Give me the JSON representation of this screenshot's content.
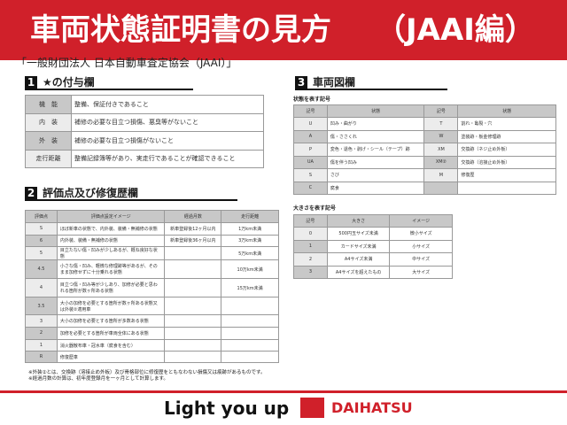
{
  "header": {
    "title": "車両状態証明書の見方",
    "subtitle": "（JAAI編）"
  },
  "organization": "「一般財団法人 日本自動車査定協会（JAAI）」",
  "section1": {
    "num": "1",
    "title": "★の付与欄",
    "rows": [
      {
        "k": "機　能",
        "v": "整備、保証付きであること"
      },
      {
        "k": "内　装",
        "v": "補修の必要な目立つ損傷、悪臭等がないこと"
      },
      {
        "k": "外　装",
        "v": "補修の必要な目立つ損傷がないこと"
      },
      {
        "k": "走行距離",
        "v": "整備記録簿等があり、実走行であることが確認できること"
      }
    ]
  },
  "section2": {
    "num": "2",
    "title": "評価点及び修復歴欄",
    "headers": [
      "評価点",
      "評価点設定イメージ",
      "経過月数",
      "走行距離"
    ],
    "rows": [
      [
        "S",
        "ほぼ新車の状態で、内外装、装備・無補修の状態",
        "新車登録後12ヶ月以内",
        "1万km未満"
      ],
      [
        "6",
        "内外装、装備・無補修の状態",
        "新車登録後36ヶ月以内",
        "3万km未満"
      ],
      [
        "5",
        "目立たない傷・凹みが少しあるが、概ね良好な状態",
        "",
        "5万km未満"
      ],
      [
        "4.5",
        "小さな傷・凹み、軽微な修理跡等があるが、そのまま加修せずに十分乗れる状態",
        "",
        "10万km未満"
      ],
      [
        "4",
        "目立つ傷・凹み等が少しあり、加修が必要と思われる箇所が数ヶ所ある状態",
        "",
        "15万km未満"
      ],
      [
        "3.5",
        "大小の加修を必要とする箇所が数ヶ所ある状態又は外装②適用車",
        "",
        ""
      ],
      [
        "3",
        "大小の加修を必要とする箇所が多数ある状態",
        "",
        ""
      ],
      [
        "2",
        "加修を必要とする箇所が車両全体にある状態",
        "",
        ""
      ],
      [
        "1",
        "消火器散布車・冠水車（腐食を含む）",
        "",
        ""
      ],
      [
        "R",
        "修復歴車",
        "",
        ""
      ]
    ]
  },
  "section3": {
    "num": "3",
    "title": "車両図欄",
    "state_caption": "状態を表す記号",
    "state_headers": [
      "記号",
      "状態",
      "記号",
      "状態"
    ],
    "state_rows": [
      [
        "U",
        "凹み・曲がり",
        "T",
        "割れ・亀裂・穴"
      ],
      [
        "A",
        "傷・ささくれ",
        "W",
        "塗装跡・板金修理跡"
      ],
      [
        "P",
        "変色・退色・剥げ・シール（テープ）跡",
        "XM",
        "交換跡（ネジ止め外板）"
      ],
      [
        "UA",
        "傷を伴う凹み",
        "XM②",
        "交換跡（溶接止め外板）"
      ],
      [
        "S",
        "さび",
        "M",
        "修復歴"
      ],
      [
        "C",
        "腐食",
        "",
        ""
      ]
    ],
    "size_caption": "大きさを表す記号",
    "size_headers": [
      "記号",
      "大きさ",
      "イメージ"
    ],
    "size_rows": [
      [
        "0",
        "500円玉サイズ未満",
        "微小サイズ"
      ],
      [
        "1",
        "カードサイズ未満",
        "小サイズ"
      ],
      [
        "2",
        "A4サイズ未満",
        "中サイズ"
      ],
      [
        "3",
        "A4サイズを超えたもの",
        "大サイズ"
      ]
    ]
  },
  "notes": [
    "※外装②とは、交換跡（溶接止め外板）及び骨格部位に修復歴をともなわない損傷又は痕跡があるものです。",
    "※経過月数の計算は、初年度登録月を一ヶ月として計算します。"
  ],
  "footer": {
    "slogan": "Light you up",
    "brand": "DAIHATSU"
  },
  "colors": {
    "accent": "#d0202a"
  }
}
